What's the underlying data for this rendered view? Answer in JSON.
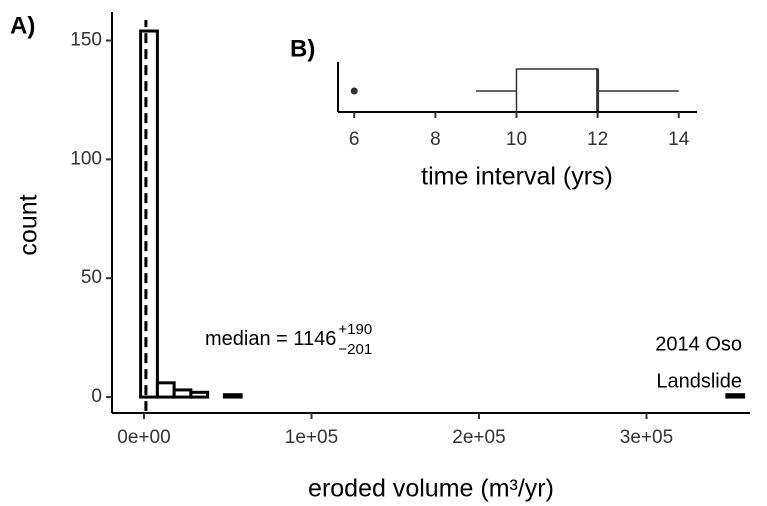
{
  "chart_data": [
    {
      "type": "histogram",
      "panel_label": "A)",
      "x_label": "eroded volume (m³/yr)",
      "y_label": "count",
      "bins": [
        -2000,
        8000,
        18000,
        28000,
        38000,
        48000,
        58000,
        68000,
        78000,
        88000,
        98000,
        108000,
        118000,
        128000,
        138000,
        148000,
        158000,
        168000,
        178000,
        188000,
        198000,
        208000,
        218000,
        228000,
        238000,
        248000,
        258000,
        268000,
        278000,
        288000,
        298000,
        308000,
        318000,
        328000,
        338000,
        348000,
        358000
      ],
      "values": [
        154,
        6,
        3,
        2,
        0,
        1,
        0,
        0,
        0,
        0,
        0,
        0,
        0,
        0,
        0,
        0,
        0,
        0,
        0,
        0,
        0,
        0,
        0,
        0,
        0,
        0,
        0,
        0,
        0,
        0,
        0,
        0,
        0,
        0,
        0,
        1
      ],
      "color": "#000000",
      "median": 1146,
      "median_label": {
        "text": "median = 1146",
        "upper": "+190",
        "lower": "−201"
      },
      "annotations": [
        "2014 Oso",
        "Landslide"
      ],
      "xlim": [
        -19100,
        361800
      ],
      "ylim": [
        -6.7,
        162
      ],
      "xticks": [
        {
          "value": 0,
          "label": "0e+00"
        },
        {
          "value": 100000,
          "label": "1e+05"
        },
        {
          "value": 200000,
          "label": "2e+05"
        },
        {
          "value": 300000,
          "label": "3e+05"
        }
      ],
      "yticks": [
        0,
        50,
        100,
        150
      ]
    },
    {
      "type": "box",
      "panel_label": "B)",
      "x_label": "time interval (yrs)",
      "whisker_low": 9,
      "q1": 10,
      "median": 12,
      "q3": 12,
      "whisker_high": 14,
      "outliers": [
        6
      ],
      "color": "#333333",
      "xlim": [
        5.6,
        14.45
      ],
      "xticks": [
        6,
        8,
        10,
        12,
        14
      ]
    }
  ]
}
